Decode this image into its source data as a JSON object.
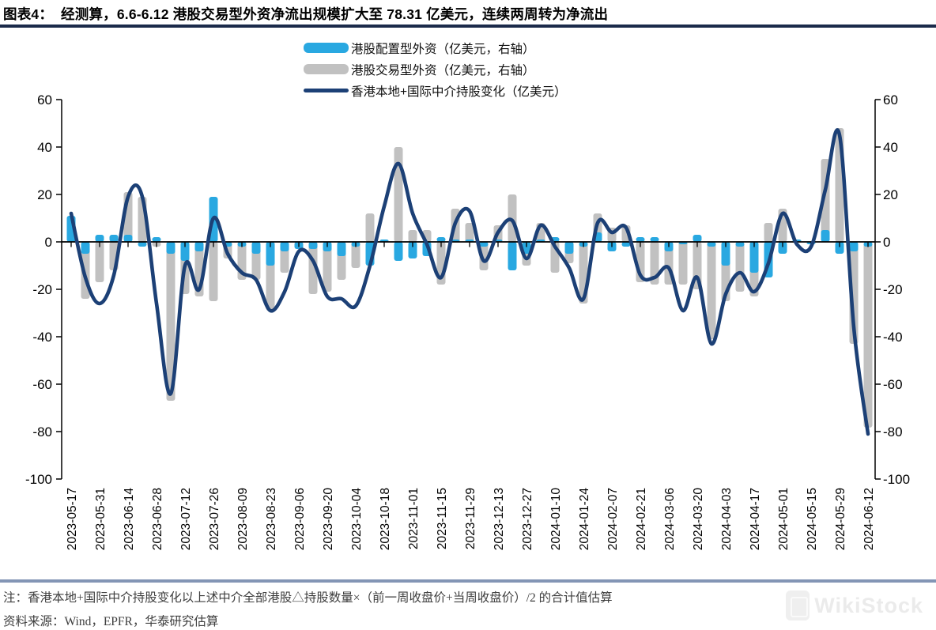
{
  "header": {
    "title_prefix": "图表4：",
    "title_rest": "经测算，6.6-6.12 港股交易型外资净流出规模扩大至 78.31 亿美元，连续两周转为净流出"
  },
  "legend": {
    "items": [
      {
        "label": "港股配置型外资（亿美元，右轴）",
        "swatch": "bar",
        "color": "#29A8E1"
      },
      {
        "label": "港股交易型外资（亿美元，右轴）",
        "swatch": "bar",
        "color": "#C1C1C1"
      },
      {
        "label": "香港本地+国际中介持股变化（亿美元）",
        "swatch": "line",
        "color": "#1C4076"
      }
    ]
  },
  "chart_data": {
    "type": "combo_bar_line",
    "title": "经测算，6.6-6.12 港股交易型外资净流出规模扩大至 78.31 亿美元，连续两周转为净流出",
    "ylim": [
      -100,
      60
    ],
    "yticks": [
      60,
      40,
      20,
      0,
      -20,
      -40,
      -60,
      -80,
      -100
    ],
    "dual_axis": true,
    "grid": false,
    "legend_position": "top-center",
    "x": [
      "2023-05-17",
      "2023-05-24",
      "2023-05-31",
      "2023-06-07",
      "2023-06-14",
      "2023-06-21",
      "2023-06-28",
      "2023-07-05",
      "2023-07-12",
      "2023-07-19",
      "2023-07-26",
      "2023-08-02",
      "2023-08-09",
      "2023-08-16",
      "2023-08-23",
      "2023-08-30",
      "2023-09-06",
      "2023-09-13",
      "2023-09-20",
      "2023-09-27",
      "2023-10-04",
      "2023-10-11",
      "2023-10-18",
      "2023-10-25",
      "2023-11-01",
      "2023-11-08",
      "2023-11-15",
      "2023-11-22",
      "2023-11-29",
      "2023-12-06",
      "2023-12-13",
      "2023-12-20",
      "2023-12-27",
      "2024-01-03",
      "2024-01-10",
      "2024-01-17",
      "2024-01-24",
      "2024-01-31",
      "2024-02-07",
      "2024-02-14",
      "2024-02-21",
      "2024-02-28",
      "2024-03-06",
      "2024-03-13",
      "2024-03-20",
      "2024-03-27",
      "2024-04-03",
      "2024-04-10",
      "2024-04-17",
      "2024-04-24",
      "2024-05-01",
      "2024-05-08",
      "2024-05-15",
      "2024-05-22",
      "2024-05-29",
      "2024-06-05",
      "2024-06-12"
    ],
    "x_tick_labels": [
      "2023-05-17",
      "2023-05-31",
      "2023-06-14",
      "2023-06-28",
      "2023-07-12",
      "2023-07-26",
      "2023-08-09",
      "2023-08-23",
      "2023-09-06",
      "2023-09-20",
      "2023-10-04",
      "2023-10-18",
      "2023-11-01",
      "2023-11-15",
      "2023-11-29",
      "2023-12-13",
      "2023-12-27",
      "2024-01-10",
      "2024-01-24",
      "2024-02-07",
      "2024-02-21",
      "2024-03-06",
      "2024-03-20",
      "2024-04-03",
      "2024-04-17",
      "2024-05-01",
      "2024-05-15",
      "2024-05-29",
      "2024-06-12"
    ],
    "series": [
      {
        "name": "港股配置型外资（亿美元，右轴）",
        "type": "bar",
        "color": "#29A8E1",
        "values": [
          11,
          -5,
          3,
          3,
          3,
          -2,
          2,
          -5,
          -8,
          -4,
          19,
          -2,
          -2,
          -5,
          -10,
          -4,
          -3,
          -3,
          -4,
          -6,
          -2,
          -10,
          1,
          -8,
          -7,
          -6,
          2,
          1,
          1,
          -2,
          1,
          -12,
          -5,
          1,
          2,
          -5,
          -2,
          4,
          -4,
          -2,
          2,
          2,
          -4,
          -1,
          3,
          -2,
          -10,
          -2,
          -13,
          -15,
          -5,
          1,
          -1,
          5,
          -5,
          -4,
          -2
        ]
      },
      {
        "name": "港股交易型外资（亿美元，右轴）",
        "type": "bar",
        "color": "#C1C1C1",
        "values": [
          2,
          -24,
          -17,
          -12,
          21,
          19,
          -2,
          -67,
          -22,
          -23,
          -25,
          -7,
          -16,
          -16,
          -29,
          -13,
          -3,
          -22,
          -21,
          -16,
          -11,
          12,
          1,
          40,
          5,
          5,
          -18,
          14,
          8,
          -12,
          7,
          20,
          -10,
          8,
          -13,
          -9,
          -26,
          12,
          6,
          7,
          -17,
          -18,
          -18,
          -18,
          -20,
          -41,
          -25,
          -21,
          -23,
          8,
          14,
          1,
          -1,
          35,
          48,
          -43,
          -78.31
        ]
      },
      {
        "name": "香港本地+国际中介持股变化（亿美元）",
        "type": "line",
        "color": "#1C4076",
        "values": [
          12,
          -15,
          -26,
          -14,
          19,
          19,
          -26,
          -64,
          -10,
          -20,
          10,
          -5,
          -13,
          -16,
          -29,
          -21,
          -4,
          -8,
          -23,
          -24,
          -27,
          -10,
          15,
          33,
          12,
          -1,
          -15,
          8,
          13,
          -8,
          4,
          9,
          -7,
          7,
          -2,
          -11,
          -24,
          8,
          4,
          6,
          -14,
          -15,
          -11,
          -29,
          -15,
          -43,
          -22,
          -13,
          -21,
          -9,
          12,
          -1,
          -2,
          22,
          45,
          -36,
          -81
        ]
      }
    ]
  },
  "footer": {
    "note": "注：香港本地+国际中介持股变化以上述中介全部港股△持股数量×（前一周收盘价+当周收盘价）/2 的合计值估算",
    "source": "资料来源：Wind，EPFR，华泰研究估算"
  },
  "watermark": {
    "text": "WikiStock"
  },
  "colors": {
    "title_rule": "#1B2A4A",
    "footer_rule": "#8395B5",
    "axis": "#000000",
    "bar_allocation": "#29A8E1",
    "bar_trading": "#C1C1C1",
    "line_holdings": "#1C4076",
    "watermark_text": "#EBEBEB"
  }
}
